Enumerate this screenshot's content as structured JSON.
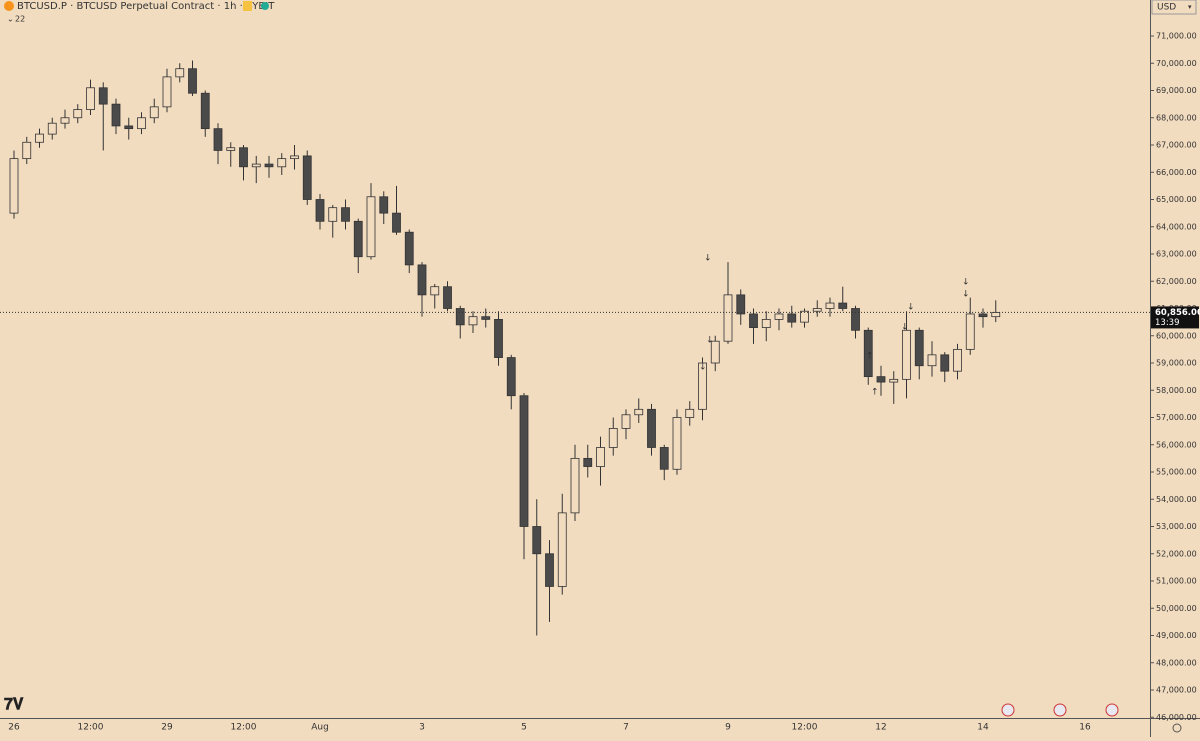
{
  "chart_data": {
    "type": "candlestick",
    "title": "BTCUSD.P · BTCUSD Perpetual Contract · 1h · BYBIT",
    "indicator_count": 22,
    "currency": "USD",
    "last_price": {
      "value": 60856,
      "label": "60,856.00"
    },
    "countdown": "13:39",
    "up_color": "#f2dcc0",
    "down_color": "#4a4a4a",
    "categories": [
      "26",
      null,
      null,
      null,
      null,
      null,
      "12:00",
      null,
      null,
      null,
      null,
      null,
      "29",
      null,
      null,
      null,
      null,
      null,
      "12:00",
      null,
      null,
      null,
      null,
      null,
      "Aug",
      null,
      null,
      null,
      null,
      null,
      null,
      null,
      "3",
      null,
      null,
      null,
      null,
      null,
      null,
      null,
      "5",
      null,
      null,
      null,
      null,
      null,
      null,
      null,
      "7",
      null,
      null,
      null,
      null,
      null,
      null,
      null,
      "9",
      null,
      null,
      null,
      null,
      null,
      "12:00",
      null,
      null,
      null,
      null,
      null,
      "12",
      null,
      null,
      null,
      null,
      null,
      null,
      null,
      "14",
      null,
      null,
      null,
      null,
      null,
      null,
      null,
      "16"
    ],
    "open": [
      64500,
      66500,
      67100,
      67400,
      67800,
      68000,
      68300,
      69100,
      68500,
      67700,
      67600,
      68000,
      68400,
      69500,
      69800,
      68900,
      67600,
      66800,
      66900,
      66200,
      66300,
      66200,
      66500,
      66600,
      65000,
      64200,
      64700,
      64200,
      62900,
      65100,
      64500,
      63800,
      62600,
      61500,
      61800,
      61000,
      60400,
      60700,
      60600,
      59200,
      57800,
      53000,
      52000,
      50800,
      53500,
      55500,
      55200,
      55900,
      56600,
      57100,
      57300,
      55900,
      55100,
      57000,
      57300,
      59000,
      59800,
      61500,
      60800,
      60300,
      60600,
      60800,
      60500,
      60900,
      61000,
      61200,
      61000,
      60200,
      58500,
      58300,
      58400,
      60200,
      58900,
      59300,
      58700,
      59500,
      60800,
      60700,
      null,
      null,
      null,
      null,
      null,
      null,
      null
    ],
    "high": [
      66800,
      67300,
      67600,
      68000,
      68300,
      68500,
      69400,
      69300,
      68700,
      68000,
      68200,
      68700,
      69800,
      70000,
      70100,
      69000,
      67800,
      67100,
      67000,
      66600,
      66600,
      66700,
      67000,
      66800,
      65200,
      64800,
      65000,
      64300,
      65600,
      65300,
      65500,
      63900,
      62700,
      61900,
      62000,
      61100,
      60900,
      61000,
      60900,
      59300,
      57900,
      54000,
      52500,
      54200,
      56000,
      56000,
      56300,
      57000,
      57300,
      57700,
      57500,
      56000,
      57300,
      57600,
      59200,
      60000,
      62700,
      61700,
      61000,
      60900,
      61000,
      61100,
      61000,
      61300,
      61400,
      61800,
      61100,
      60300,
      58900,
      58700,
      60900,
      60300,
      59800,
      59400,
      59700,
      61400,
      61000,
      61300,
      null,
      null,
      null,
      null,
      null,
      null,
      null
    ],
    "low": [
      64300,
      66300,
      66900,
      67200,
      67600,
      67800,
      68100,
      66800,
      67400,
      67200,
      67400,
      67800,
      68200,
      69300,
      68800,
      67300,
      66300,
      66200,
      65700,
      65600,
      65800,
      65900,
      66100,
      64800,
      63900,
      63600,
      63900,
      62300,
      62800,
      64100,
      63700,
      62300,
      60700,
      61000,
      60900,
      59900,
      60100,
      60300,
      58900,
      57300,
      51800,
      49000,
      49500,
      50500,
      53200,
      54800,
      54500,
      55600,
      56200,
      56800,
      55600,
      54700,
      54900,
      56700,
      56900,
      58700,
      59700,
      60400,
      59700,
      59800,
      60200,
      60300,
      60300,
      60700,
      60700,
      60900,
      59900,
      58200,
      57800,
      57500,
      57700,
      58400,
      58500,
      58300,
      58400,
      59300,
      60300,
      60500,
      null,
      null,
      null,
      null,
      null,
      null,
      null
    ],
    "close": [
      66500,
      67100,
      67400,
      67800,
      68000,
      68300,
      69100,
      68500,
      67700,
      67600,
      68000,
      68400,
      69500,
      69800,
      68900,
      67600,
      66800,
      66900,
      66200,
      66300,
      66200,
      66500,
      66600,
      65000,
      64200,
      64700,
      64200,
      62900,
      65100,
      64500,
      63800,
      62600,
      61500,
      61800,
      61000,
      60400,
      60700,
      60600,
      59200,
      57800,
      53000,
      52000,
      50800,
      53500,
      55500,
      55200,
      55900,
      56600,
      57100,
      57300,
      55900,
      55100,
      57000,
      57300,
      59000,
      59800,
      61500,
      60800,
      60300,
      60600,
      60800,
      60500,
      60900,
      61000,
      61200,
      61000,
      60200,
      58500,
      58300,
      58400,
      60200,
      58900,
      59300,
      58700,
      59500,
      60800,
      60700,
      60856,
      null,
      null,
      null,
      null,
      null,
      null,
      null
    ],
    "ylim": [
      46000,
      71000
    ],
    "yticks": [
      {
        "value": 46000,
        "label": "46,000.00"
      },
      {
        "value": 47000,
        "label": "47,000.00"
      },
      {
        "value": 48000,
        "label": "48,000.00"
      },
      {
        "value": 49000,
        "label": "49,000.00"
      },
      {
        "value": 50000,
        "label": "50,000.00"
      },
      {
        "value": 51000,
        "label": "51,000.00"
      },
      {
        "value": 52000,
        "label": "52,000.00"
      },
      {
        "value": 53000,
        "label": "53,000.00"
      },
      {
        "value": 54000,
        "label": "54,000.00"
      },
      {
        "value": 55000,
        "label": "55,000.00"
      },
      {
        "value": 56000,
        "label": "56,000.00"
      },
      {
        "value": 57000,
        "label": "57,000.00"
      },
      {
        "value": 58000,
        "label": "58,000.00"
      },
      {
        "value": 59000,
        "label": "59,000.00"
      },
      {
        "value": 60000,
        "label": "60,000.00"
      },
      {
        "value": 61000,
        "label": "61,000.00"
      },
      {
        "value": 62000,
        "label": "62,000.00"
      },
      {
        "value": 63000,
        "label": "63,000.00"
      },
      {
        "value": 64000,
        "label": "64,000.00"
      },
      {
        "value": 65000,
        "label": "65,000.00"
      },
      {
        "value": 66000,
        "label": "66,000.00"
      },
      {
        "value": 67000,
        "label": "67,000.00"
      },
      {
        "value": 68000,
        "label": "68,000.00"
      },
      {
        "value": 69000,
        "label": "69,000.00"
      },
      {
        "value": 70000,
        "label": "70,000.00"
      },
      {
        "value": 71000,
        "label": "71,000.00"
      }
    ]
  }
}
